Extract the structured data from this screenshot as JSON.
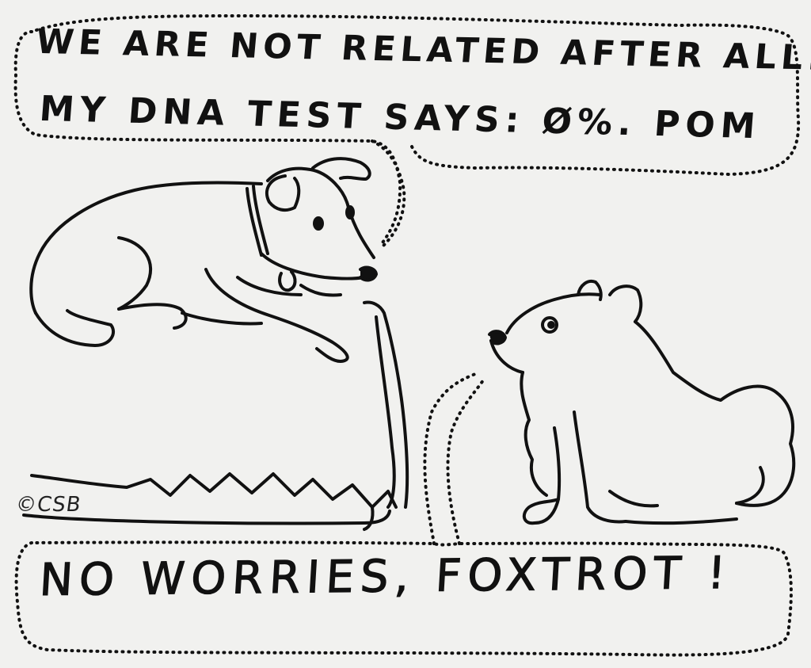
{
  "comic": {
    "top_speech": {
      "line1": "WE ARE NOT RELATED AFTER ALL:",
      "line2": "MY DNA TEST SAYS: Ø%. POM"
    },
    "bottom_speech": {
      "text": "NO WORRIES, FOXTROT !"
    },
    "signature": "©CSB"
  },
  "colors": {
    "ink": "#111111",
    "paper": "#f1f1ef"
  }
}
